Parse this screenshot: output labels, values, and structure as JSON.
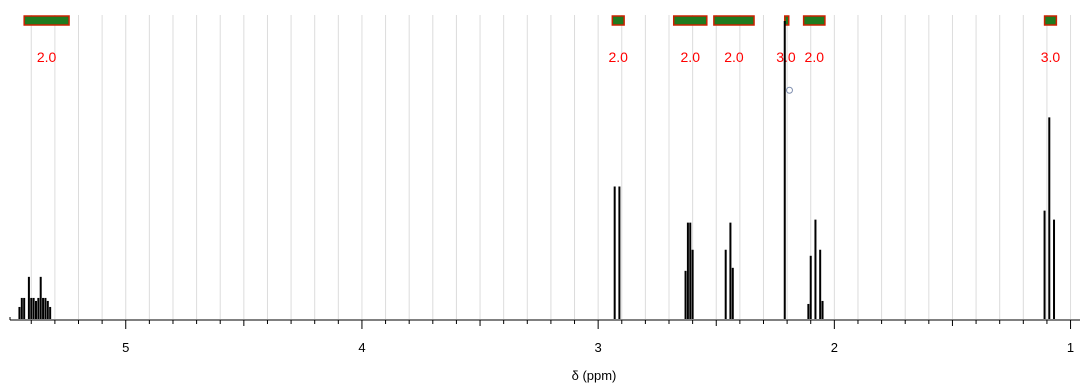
{
  "chart_data": {
    "type": "line",
    "title": "",
    "xlabel": "δ (ppm)",
    "ylabel": "",
    "x_axis_direction": "reversed",
    "xlim": [
      5.49,
      0.96
    ],
    "ylim": [
      0,
      1
    ],
    "grid": true,
    "tick_labels": [
      "5",
      "4",
      "3",
      "2",
      "1"
    ],
    "tick_values": [
      5,
      4,
      3,
      2,
      1
    ],
    "colors": {
      "spectrum": "#000000",
      "integral_bar": "#1f7a1f",
      "integral_bar_edge": "#cc2200",
      "integral_text": "#ff0000",
      "grid": "#dcdcdc",
      "axis": "#000000"
    },
    "integrals": [
      {
        "from": 5.43,
        "to": 5.24,
        "value": "2.0"
      },
      {
        "from": 2.94,
        "to": 2.89,
        "value": "2.0"
      },
      {
        "from": 2.68,
        "to": 2.54,
        "value": "2.0"
      },
      {
        "from": 2.51,
        "to": 2.34,
        "value": "2.0"
      },
      {
        "from": 2.21,
        "to": 2.2,
        "value": "3.0"
      },
      {
        "from": 2.13,
        "to": 2.04,
        "value": "2.0"
      },
      {
        "from": 1.11,
        "to": 1.06,
        "value": "3.0"
      }
    ],
    "peaks": [
      {
        "x": 5.45,
        "y": 0.04
      },
      {
        "x": 5.44,
        "y": 0.07
      },
      {
        "x": 5.43,
        "y": 0.07
      },
      {
        "x": 5.41,
        "y": 0.14
      },
      {
        "x": 5.4,
        "y": 0.07
      },
      {
        "x": 5.39,
        "y": 0.07
      },
      {
        "x": 5.38,
        "y": 0.06
      },
      {
        "x": 5.37,
        "y": 0.07
      },
      {
        "x": 5.36,
        "y": 0.14
      },
      {
        "x": 5.35,
        "y": 0.07
      },
      {
        "x": 5.34,
        "y": 0.07
      },
      {
        "x": 5.33,
        "y": 0.06
      },
      {
        "x": 5.32,
        "y": 0.04
      },
      {
        "x": 2.93,
        "y": 0.44
      },
      {
        "x": 2.91,
        "y": 0.44
      },
      {
        "x": 2.63,
        "y": 0.16
      },
      {
        "x": 2.62,
        "y": 0.32
      },
      {
        "x": 2.61,
        "y": 0.32
      },
      {
        "x": 2.6,
        "y": 0.23
      },
      {
        "x": 2.46,
        "y": 0.23
      },
      {
        "x": 2.44,
        "y": 0.32
      },
      {
        "x": 2.43,
        "y": 0.17
      },
      {
        "x": 2.21,
        "y": 0.99
      },
      {
        "x": 2.11,
        "y": 0.05
      },
      {
        "x": 2.1,
        "y": 0.21
      },
      {
        "x": 2.08,
        "y": 0.33
      },
      {
        "x": 2.06,
        "y": 0.23
      },
      {
        "x": 2.05,
        "y": 0.06
      },
      {
        "x": 1.11,
        "y": 0.36
      },
      {
        "x": 1.09,
        "y": 0.67
      },
      {
        "x": 1.07,
        "y": 0.33
      }
    ],
    "markers": [
      {
        "x": 2.19,
        "y": 0.76,
        "shape": "circle"
      }
    ]
  }
}
